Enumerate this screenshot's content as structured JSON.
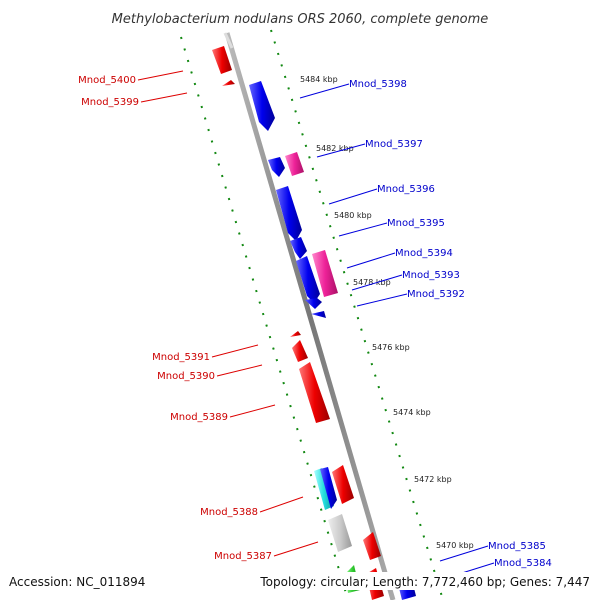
{
  "title": "Methylobacterium nodulans ORS 2060, complete genome",
  "footer": {
    "accession": "Accession: NC_011894",
    "topology": "Topology: circular; Length: 7,772,460 bp; Genes: 7,447"
  },
  "colors": {
    "forward_gene": "#0000dd",
    "reverse_gene": "#dd0000",
    "forward_pink": "#ee2299",
    "cyan_gene": "#22dddd",
    "grey_gene": "#cccccc",
    "green_gene": "#33cc33",
    "tick_track": "#118811",
    "backbone": "#888888"
  },
  "ticks": [
    "5484 kbp",
    "5482 kbp",
    "5480 kbp",
    "5478 kbp",
    "5476 kbp",
    "5474 kbp",
    "5472 kbp",
    "5470 kbp"
  ],
  "genes_forward": [
    "Mnod_5398",
    "Mnod_5397",
    "Mnod_5396",
    "Mnod_5395",
    "Mnod_5394",
    "Mnod_5393",
    "Mnod_5392",
    "Mnod_5385",
    "Mnod_5384"
  ],
  "genes_reverse": [
    "Mnod_5400",
    "Mnod_5399",
    "Mnod_5391",
    "Mnod_5390",
    "Mnod_5389",
    "Mnod_5388",
    "Mnod_5387"
  ]
}
